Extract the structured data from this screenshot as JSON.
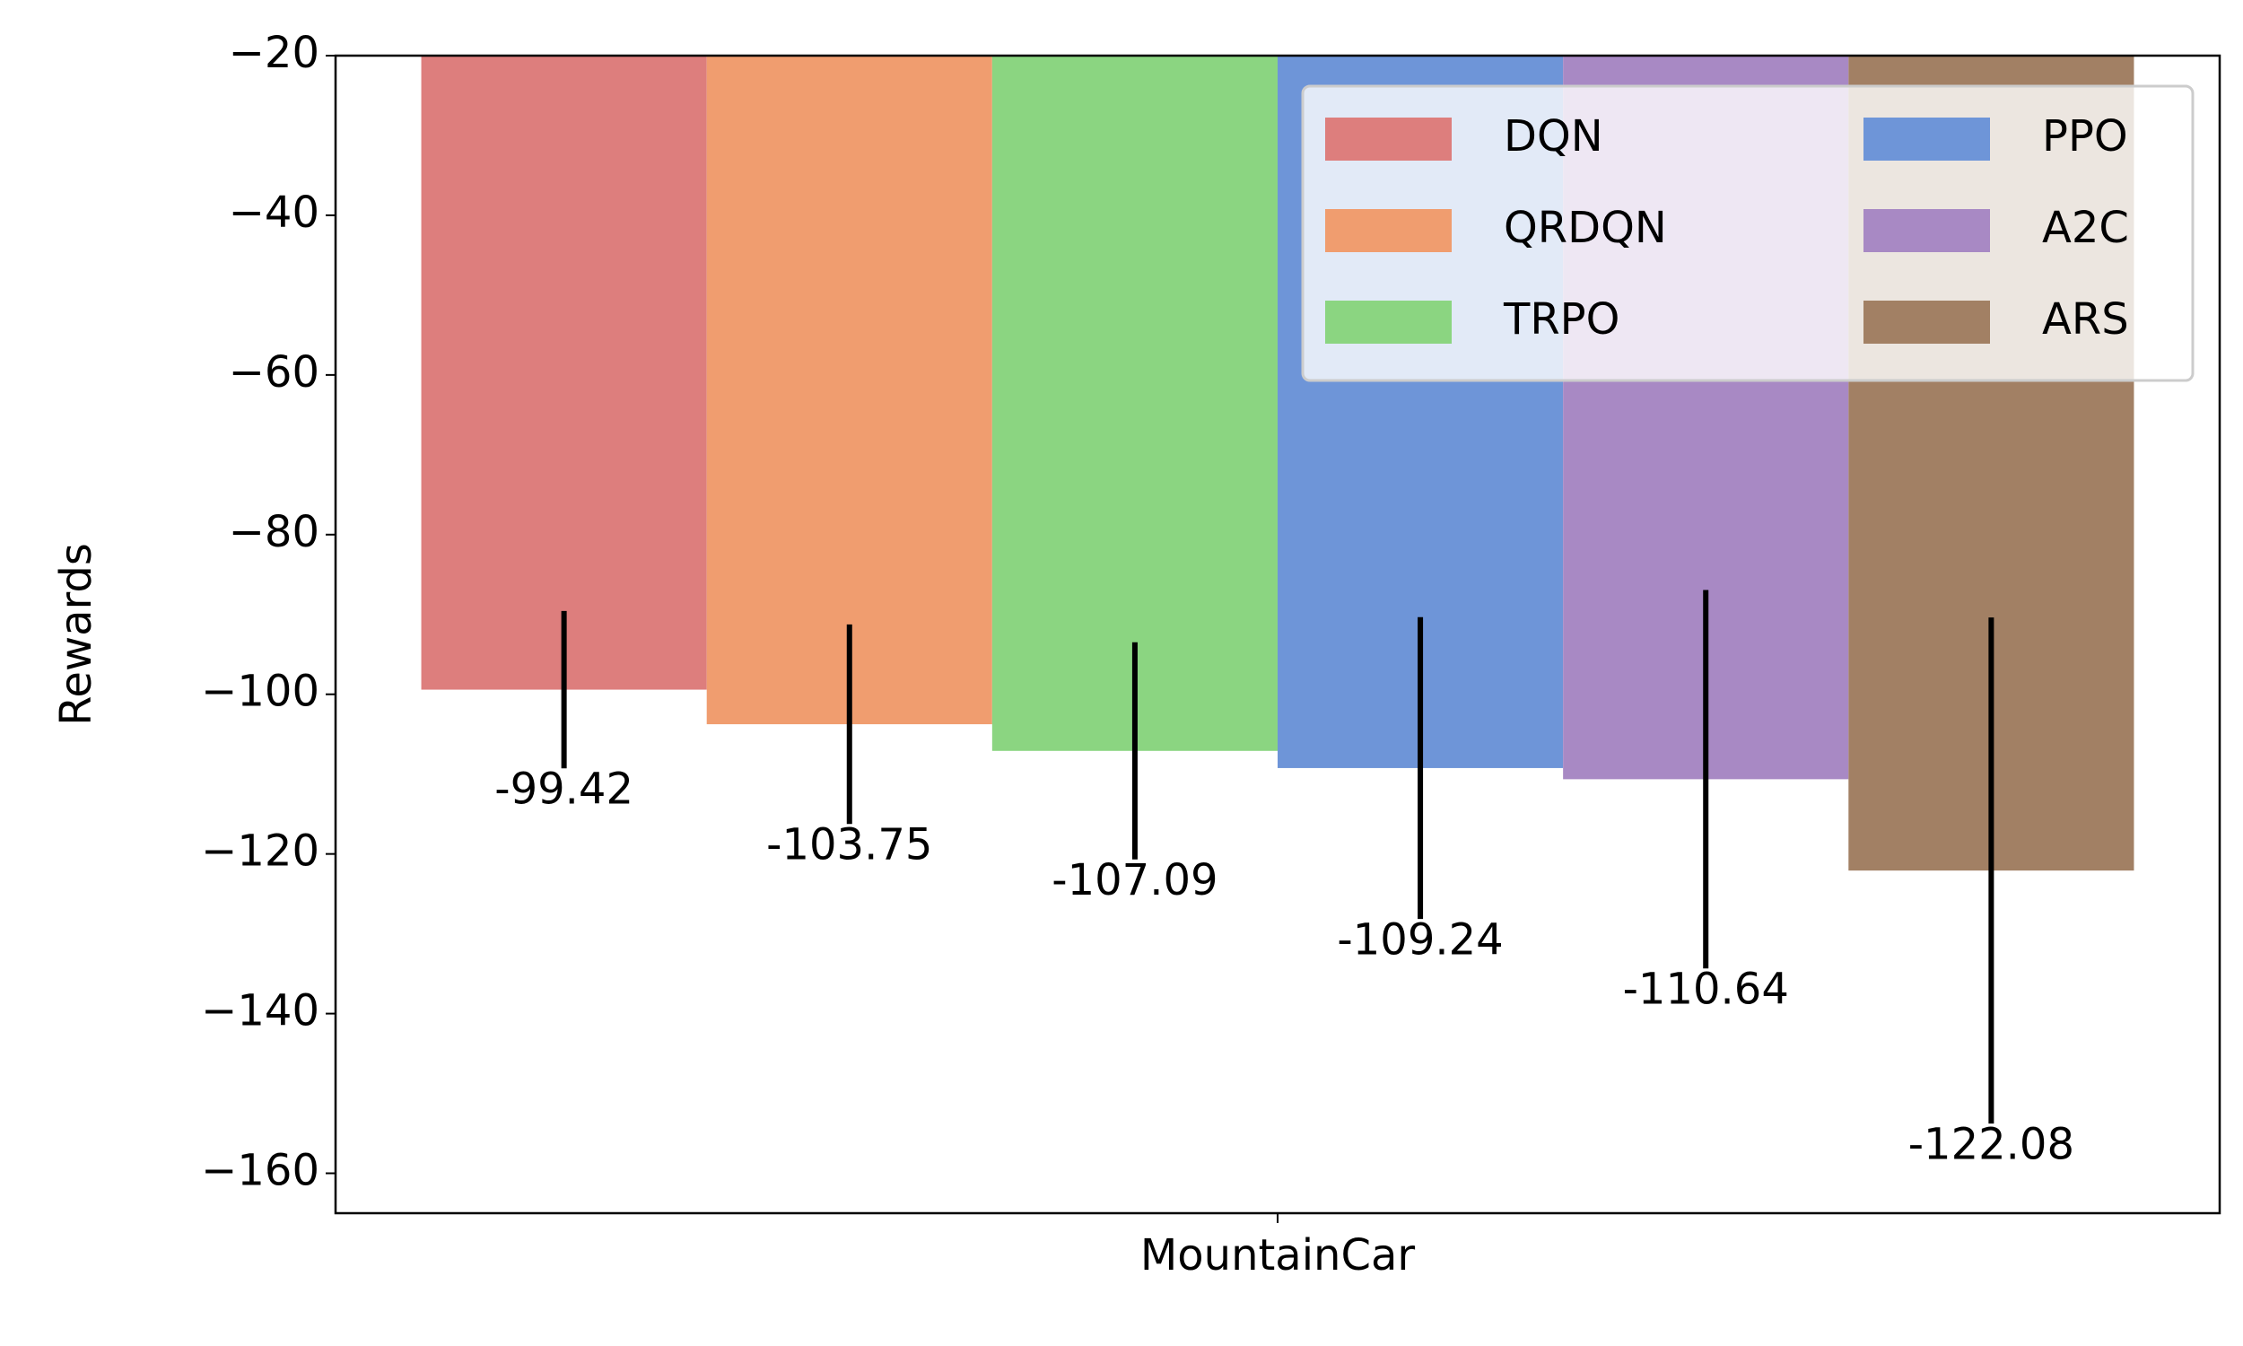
{
  "chart_data": {
    "type": "bar",
    "ylabel": "Rewards",
    "categories": [
      "MountainCar"
    ],
    "series": [
      {
        "name": "DQN",
        "color": "#dd7e7d",
        "values": [
          -99.42
        ],
        "errors": [
          9.85
        ]
      },
      {
        "name": "QRDQN",
        "color": "#f09d6f",
        "values": [
          -103.75
        ],
        "errors": [
          12.5
        ]
      },
      {
        "name": "TRPO",
        "color": "#8bd581",
        "values": [
          -107.09
        ],
        "errors": [
          13.6
        ]
      },
      {
        "name": "PPO",
        "color": "#6e95d8",
        "values": [
          -109.24
        ],
        "errors": [
          18.9
        ]
      },
      {
        "name": "A2C",
        "color": "#a889c4",
        "values": [
          -110.64
        ],
        "errors": [
          23.7
        ]
      },
      {
        "name": "ARS",
        "color": "#a28064",
        "values": [
          -122.08
        ],
        "errors": [
          31.7
        ]
      }
    ],
    "ylim": [
      -165,
      -20
    ],
    "yticks": [
      {
        "value": -20,
        "label": "−20"
      },
      {
        "value": -40,
        "label": "−40"
      },
      {
        "value": -60,
        "label": "−60"
      },
      {
        "value": -80,
        "label": "−80"
      },
      {
        "value": -100,
        "label": "−100"
      },
      {
        "value": -120,
        "label": "−120"
      },
      {
        "value": -140,
        "label": "−140"
      },
      {
        "value": -160,
        "label": "−160"
      }
    ],
    "legend": "upper right"
  }
}
